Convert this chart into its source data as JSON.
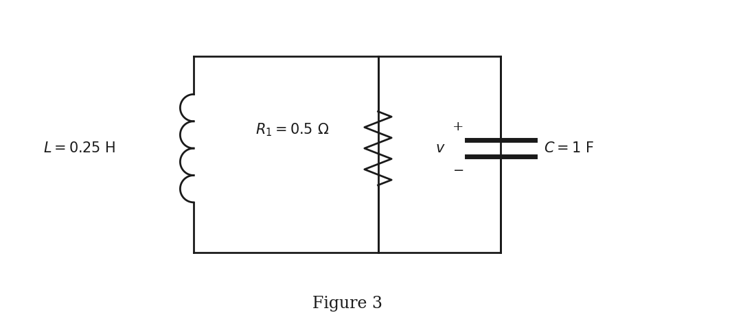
{
  "fig_width": 11.01,
  "fig_height": 4.59,
  "dpi": 100,
  "background_color": "#ffffff",
  "line_color": "#1a1a1a",
  "line_width": 2.0,
  "figure_label": "Figure 3",
  "xlim": [
    0,
    11
  ],
  "ylim": [
    -0.5,
    4.5
  ]
}
